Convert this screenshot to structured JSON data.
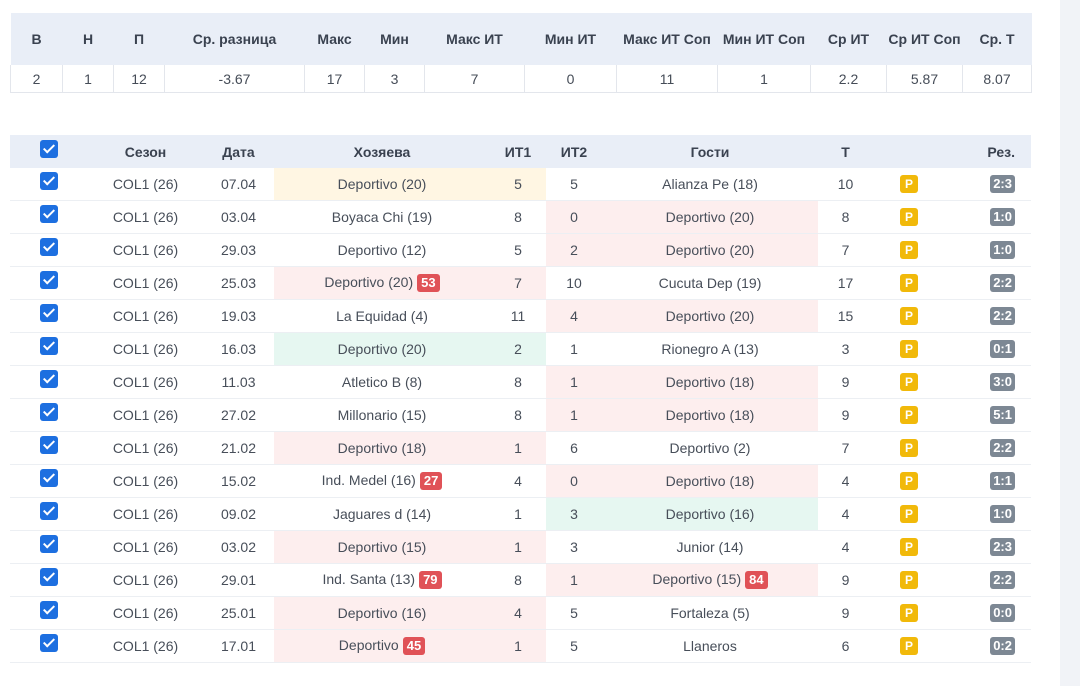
{
  "summary": {
    "headers": [
      "В",
      "Н",
      "П",
      "Ср. разница",
      "Макс",
      "Мин",
      "Макс ИТ",
      "Мин ИТ",
      "Макс ИТ Соп",
      "Мин ИТ Соп",
      "Ср ИТ",
      "Ср ИТ Соп",
      "Ср. Т"
    ],
    "values": [
      "2",
      "1",
      "12",
      "-3.67",
      "17",
      "3",
      "7",
      "0",
      "11",
      "1",
      "2.2",
      "5.87",
      "8.07"
    ]
  },
  "matches": {
    "headers": {
      "season": "Сезон",
      "date": "Дата",
      "home": "Хозяева",
      "it1": "ИТ1",
      "it2": "ИТ2",
      "away": "Гости",
      "total": "Т",
      "result": "Рез."
    },
    "rows": [
      {
        "season": "COL1 (26)",
        "date": "07.04",
        "home": "Deportivo  (20)",
        "home_badge": "",
        "it1": "5",
        "it2": "5",
        "away": "Alianza Pe (18)",
        "away_badge": "",
        "total": "10",
        "p": "P",
        "result": "2:3",
        "hl": "home-yellow"
      },
      {
        "season": "COL1 (26)",
        "date": "03.04",
        "home": "Boyaca Chi (19)",
        "home_badge": "",
        "it1": "8",
        "it2": "0",
        "away": "Deportivo  (20)",
        "away_badge": "",
        "total": "8",
        "p": "P",
        "result": "1:0",
        "hl": "away-red"
      },
      {
        "season": "COL1 (26)",
        "date": "29.03",
        "home": "Deportivo  (12)",
        "home_badge": "",
        "it1": "5",
        "it2": "2",
        "away": "Deportivo  (20)",
        "away_badge": "",
        "total": "7",
        "p": "P",
        "result": "1:0",
        "hl": "away-red"
      },
      {
        "season": "COL1 (26)",
        "date": "25.03",
        "home": "Deportivo  (20)",
        "home_badge": "53",
        "it1": "7",
        "it2": "10",
        "away": "Cucuta Dep (19)",
        "away_badge": "",
        "total": "17",
        "p": "P",
        "result": "2:2",
        "hl": "home-red"
      },
      {
        "season": "COL1 (26)",
        "date": "19.03",
        "home": "La Equidad (4)",
        "home_badge": "",
        "it1": "11",
        "it2": "4",
        "away": "Deportivo  (20)",
        "away_badge": "",
        "total": "15",
        "p": "P",
        "result": "2:2",
        "hl": "away-red"
      },
      {
        "season": "COL1 (26)",
        "date": "16.03",
        "home": "Deportivo  (20)",
        "home_badge": "",
        "it1": "2",
        "it2": "1",
        "away": "Rionegro A (13)",
        "away_badge": "",
        "total": "3",
        "p": "P",
        "result": "0:1",
        "hl": "home-green"
      },
      {
        "season": "COL1 (26)",
        "date": "11.03",
        "home": "Atletico B (8)",
        "home_badge": "",
        "it1": "8",
        "it2": "1",
        "away": "Deportivo  (18)",
        "away_badge": "",
        "total": "9",
        "p": "P",
        "result": "3:0",
        "hl": "away-red"
      },
      {
        "season": "COL1 (26)",
        "date": "27.02",
        "home": "Millonario (15)",
        "home_badge": "",
        "it1": "8",
        "it2": "1",
        "away": "Deportivo  (18)",
        "away_badge": "",
        "total": "9",
        "p": "P",
        "result": "5:1",
        "hl": "away-red"
      },
      {
        "season": "COL1 (26)",
        "date": "21.02",
        "home": "Deportivo  (18)",
        "home_badge": "",
        "it1": "1",
        "it2": "6",
        "away": "Deportivo  (2)",
        "away_badge": "",
        "total": "7",
        "p": "P",
        "result": "2:2",
        "hl": "home-red"
      },
      {
        "season": "COL1 (26)",
        "date": "15.02",
        "home": "Ind. Medel (16)",
        "home_badge": "27",
        "it1": "4",
        "it2": "0",
        "away": "Deportivo  (18)",
        "away_badge": "",
        "total": "4",
        "p": "P",
        "result": "1:1",
        "hl": "away-red"
      },
      {
        "season": "COL1 (26)",
        "date": "09.02",
        "home": "Jaguares d (14)",
        "home_badge": "",
        "it1": "1",
        "it2": "3",
        "away": "Deportivo  (16)",
        "away_badge": "",
        "total": "4",
        "p": "P",
        "result": "1:0",
        "hl": "away-green"
      },
      {
        "season": "COL1 (26)",
        "date": "03.02",
        "home": "Deportivo  (15)",
        "home_badge": "",
        "it1": "1",
        "it2": "3",
        "away": "Junior (14)",
        "away_badge": "",
        "total": "4",
        "p": "P",
        "result": "2:3",
        "hl": "home-red"
      },
      {
        "season": "COL1 (26)",
        "date": "29.01",
        "home": "Ind. Santa (13)",
        "home_badge": "79",
        "it1": "8",
        "it2": "1",
        "away": "Deportivo  (15)",
        "away_badge": "84",
        "total": "9",
        "p": "P",
        "result": "2:2",
        "hl": "away-red"
      },
      {
        "season": "COL1 (26)",
        "date": "25.01",
        "home": "Deportivo  (16)",
        "home_badge": "",
        "it1": "4",
        "it2": "5",
        "away": "Fortaleza (5)",
        "away_badge": "",
        "total": "9",
        "p": "P",
        "result": "0:0",
        "hl": "home-red"
      },
      {
        "season": "COL1 (26)",
        "date": "17.01",
        "home": "Deportivo",
        "home_badge": "45",
        "it1": "1",
        "it2": "5",
        "away": "Llaneros",
        "away_badge": "",
        "total": "6",
        "p": "P",
        "result": "0:2",
        "hl": "home-red"
      }
    ]
  },
  "colors": {
    "checkbox": "#1d6fe0",
    "highlight_red": "#fdeeee",
    "highlight_yellow": "#fff6e3",
    "highlight_green": "#e6f7f1",
    "badge_red": "#e05257",
    "badge_p": "#f1b90a",
    "badge_result": "#7d8894"
  }
}
